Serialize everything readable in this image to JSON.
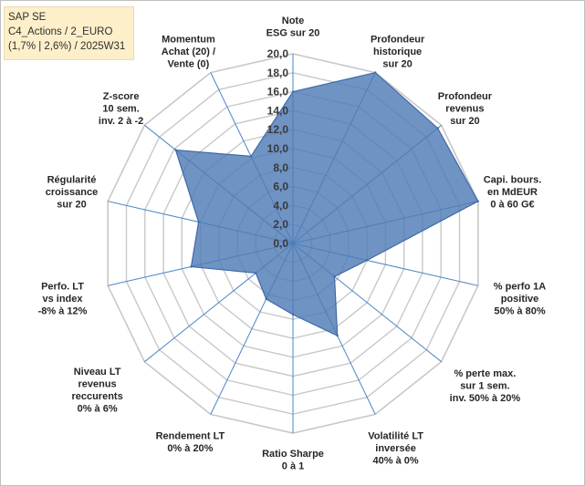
{
  "header": {
    "line1": "SAP SE",
    "line2": "C4_Actions / 2_EURO",
    "line3": "(1,7% | 2,6%) / 2025W31"
  },
  "colors": {
    "fill": "#4f7bb6",
    "stroke": "#3f69a8",
    "grid": "#c8c8c8",
    "spoke": "#4a86c8"
  },
  "chart_data": {
    "type": "radar",
    "title": "",
    "rlim": [
      0,
      20
    ],
    "grid": true,
    "r_ticks": [
      "0,0",
      "2,0",
      "4,0",
      "6,0",
      "8,0",
      "10,0",
      "12,0",
      "14,0",
      "16,0",
      "18,0",
      "20,0"
    ],
    "axes": [
      [
        "Note",
        "ESG sur 20"
      ],
      [
        "Profondeur",
        "historique",
        "sur 20"
      ],
      [
        "Profondeur",
        "revenus",
        "sur 20"
      ],
      [
        "Capi. bours.",
        "en MdEUR",
        "0 à 60 G€"
      ],
      [
        "% perfo 1A",
        "positive",
        "50% à 80%"
      ],
      [
        "% perte max.",
        "sur 1 sem.",
        "inv. 50% à 20%"
      ],
      [
        "Volatilité LT",
        "inversée",
        "40% à 0%"
      ],
      [
        "Ratio Sharpe",
        "0 à 1"
      ],
      [
        "Rendement LT",
        "0% à 20%"
      ],
      [
        "Niveau LT",
        "revenus",
        "reccurents",
        "0% à 6%"
      ],
      [
        "Perfo. LT",
        "vs index",
        "-8% à 12%"
      ],
      [
        "Régularité",
        "croissance",
        "sur 20"
      ],
      [
        "Z-score",
        "10 sem.",
        "inv. 2 à -2"
      ],
      [
        "Momentum",
        "Achat (20) /",
        "Vente (0)"
      ]
    ],
    "series": [
      {
        "values": [
          16.0,
          20.0,
          19.5,
          20.0,
          8.0,
          5.6,
          10.8,
          7.5,
          6.5,
          5.0,
          11.0,
          10.2,
          15.8,
          10.2
        ]
      }
    ]
  }
}
